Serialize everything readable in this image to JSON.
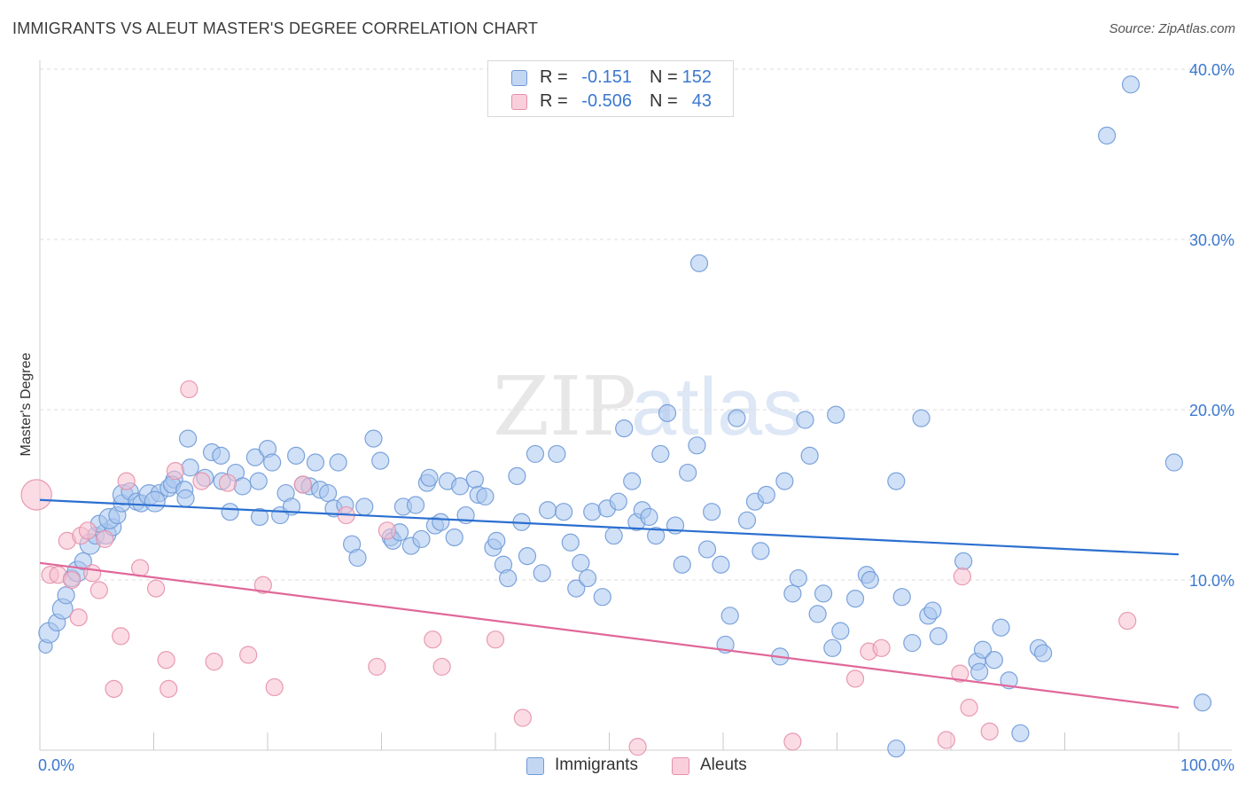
{
  "title": "IMMIGRANTS VS ALEUT MASTER'S DEGREE CORRELATION CHART",
  "source": "Source: ZipAtlas.com",
  "watermark": {
    "zip": "ZIP",
    "atlas": "atlas"
  },
  "legend": {
    "rows": [
      {
        "r_label": "R =",
        "r_value": "-0.151",
        "n_label": "N =",
        "n_value": "152"
      },
      {
        "r_label": "R =",
        "r_value": "-0.506",
        "n_label": "N =",
        "n_value": "43"
      }
    ],
    "bottom": [
      "Immigrants",
      "Aleuts"
    ]
  },
  "colors": {
    "immigrants_fill": "#a9c6ee",
    "immigrants_stroke": "#6f9ad8",
    "immigrants_line": "#2b6fd0",
    "aleuts_fill": "#f7c0cf",
    "aleuts_stroke": "#e690aa",
    "aleuts_line": "#e0689a",
    "grid": "#dcdcdc",
    "tick_text": "#3b78d0"
  },
  "chart_data": {
    "type": "scatter",
    "title": "IMMIGRANTS VS ALEUT MASTER'S DEGREE CORRELATION CHART",
    "xlabel": "",
    "ylabel": "Master's Degree",
    "xlim": [
      0,
      100
    ],
    "ylim": [
      0,
      40
    ],
    "x_tick_labels": [
      "0.0%",
      "100.0%"
    ],
    "y_ticks": [
      10,
      20,
      30,
      40
    ],
    "y_tick_labels": [
      "10.0%",
      "20.0%",
      "30.0%",
      "40.0%"
    ],
    "series": [
      {
        "name": "Immigrants",
        "r": -0.151,
        "n": 152,
        "trend": [
          [
            0,
            14.7
          ],
          [
            100,
            11.5
          ]
        ],
        "points": [
          [
            0.5,
            6.1,
            4
          ],
          [
            0.8,
            6.9,
            6
          ],
          [
            1.5,
            7.5,
            5
          ],
          [
            2,
            8.3,
            6
          ],
          [
            2.3,
            9.1,
            5
          ],
          [
            2.8,
            10.1,
            5
          ],
          [
            3.3,
            10.5,
            6
          ],
          [
            3.8,
            11.1,
            5
          ],
          [
            4.4,
            12.1,
            6
          ],
          [
            4.9,
            12.6,
            5
          ],
          [
            5.8,
            12.7,
            6
          ],
          [
            6.4,
            13.1,
            5
          ],
          [
            5.2,
            13.3,
            5
          ],
          [
            6.1,
            13.6,
            6
          ],
          [
            6.8,
            13.8,
            5
          ],
          [
            7.2,
            14.5,
            5
          ],
          [
            7.3,
            15.0,
            6
          ],
          [
            7.9,
            15.2,
            5
          ],
          [
            8.5,
            14.6,
            5
          ],
          [
            8.9,
            14.5,
            5
          ],
          [
            9.6,
            15.0,
            6
          ],
          [
            10.5,
            15.1,
            5
          ],
          [
            10.1,
            14.6,
            6
          ],
          [
            11.3,
            15.4,
            5
          ],
          [
            11.8,
            15.9,
            5
          ],
          [
            11.6,
            15.6,
            5
          ],
          [
            12.7,
            15.3,
            5
          ],
          [
            12.8,
            14.8,
            5
          ],
          [
            13.2,
            16.6,
            5
          ],
          [
            13.0,
            18.3,
            5
          ],
          [
            14.5,
            16.0,
            5
          ],
          [
            15.1,
            17.5,
            5
          ],
          [
            16.0,
            15.8,
            5
          ],
          [
            15.9,
            17.3,
            5
          ],
          [
            17.2,
            16.3,
            5
          ],
          [
            16.7,
            14.0,
            5
          ],
          [
            17.8,
            15.5,
            5
          ],
          [
            18.9,
            17.2,
            5
          ],
          [
            19.2,
            15.8,
            5
          ],
          [
            19.3,
            13.7,
            5
          ],
          [
            20.0,
            17.7,
            5
          ],
          [
            20.4,
            16.9,
            5
          ],
          [
            21.1,
            13.8,
            5
          ],
          [
            21.6,
            15.1,
            5
          ],
          [
            22.1,
            14.3,
            5
          ],
          [
            22.5,
            17.3,
            5
          ],
          [
            23.1,
            15.6,
            5
          ],
          [
            23.7,
            15.5,
            5
          ],
          [
            24.2,
            16.9,
            5
          ],
          [
            24.6,
            15.3,
            5
          ],
          [
            25.3,
            15.1,
            5
          ],
          [
            25.8,
            14.2,
            5
          ],
          [
            26.2,
            16.9,
            5
          ],
          [
            26.8,
            14.4,
            5
          ],
          [
            27.4,
            12.1,
            5
          ],
          [
            27.9,
            11.3,
            5
          ],
          [
            28.5,
            14.3,
            5
          ],
          [
            29.3,
            18.3,
            5
          ],
          [
            29.9,
            17.0,
            5
          ],
          [
            30.8,
            12.5,
            5
          ],
          [
            31.0,
            12.3,
            5
          ],
          [
            31.6,
            12.8,
            5
          ],
          [
            31.9,
            14.3,
            5
          ],
          [
            32.6,
            12.0,
            5
          ],
          [
            33.0,
            14.4,
            5
          ],
          [
            33.5,
            12.4,
            5
          ],
          [
            34.0,
            15.7,
            5
          ],
          [
            34.7,
            13.2,
            5
          ],
          [
            34.2,
            16.0,
            5
          ],
          [
            35.2,
            13.4,
            5
          ],
          [
            35.8,
            15.8,
            5
          ],
          [
            36.4,
            12.5,
            5
          ],
          [
            36.9,
            15.5,
            5
          ],
          [
            37.4,
            13.8,
            5
          ],
          [
            38.2,
            15.9,
            5
          ],
          [
            38.5,
            15.0,
            5
          ],
          [
            39.1,
            14.9,
            5
          ],
          [
            39.8,
            11.9,
            5
          ],
          [
            40.1,
            12.3,
            5
          ],
          [
            40.7,
            10.9,
            5
          ],
          [
            41.1,
            10.1,
            5
          ],
          [
            41.9,
            16.1,
            5
          ],
          [
            42.3,
            13.4,
            5
          ],
          [
            42.8,
            11.4,
            5
          ],
          [
            43.5,
            17.4,
            5
          ],
          [
            44.1,
            10.4,
            5
          ],
          [
            44.6,
            14.1,
            5
          ],
          [
            45.4,
            17.4,
            5
          ],
          [
            46.0,
            14.0,
            5
          ],
          [
            46.6,
            12.2,
            5
          ],
          [
            47.1,
            9.5,
            5
          ],
          [
            47.5,
            11.0,
            5
          ],
          [
            48.1,
            10.1,
            5
          ],
          [
            48.5,
            14.0,
            5
          ],
          [
            49.4,
            9.0,
            5
          ],
          [
            49.8,
            14.2,
            5
          ],
          [
            50.4,
            12.6,
            5
          ],
          [
            50.8,
            14.6,
            5
          ],
          [
            51.3,
            18.9,
            5
          ],
          [
            52.0,
            15.8,
            5
          ],
          [
            52.4,
            13.4,
            5
          ],
          [
            52.9,
            14.1,
            5
          ],
          [
            53.5,
            13.7,
            5
          ],
          [
            54.1,
            12.6,
            5
          ],
          [
            54.5,
            17.4,
            5
          ],
          [
            55.1,
            19.8,
            5
          ],
          [
            55.8,
            13.2,
            5
          ],
          [
            56.4,
            10.9,
            5
          ],
          [
            56.9,
            16.3,
            5
          ],
          [
            57.7,
            17.9,
            5
          ],
          [
            57.9,
            28.6,
            5
          ],
          [
            58.6,
            11.8,
            5
          ],
          [
            59.0,
            14.0,
            5
          ],
          [
            59.8,
            10.9,
            5
          ],
          [
            60.2,
            6.2,
            5
          ],
          [
            60.6,
            7.9,
            5
          ],
          [
            61.2,
            19.5,
            5
          ],
          [
            62.1,
            13.5,
            5
          ],
          [
            62.8,
            14.6,
            5
          ],
          [
            63.3,
            11.7,
            5
          ],
          [
            63.8,
            15.0,
            5
          ],
          [
            65.0,
            5.5,
            5
          ],
          [
            65.4,
            15.8,
            5
          ],
          [
            66.1,
            9.2,
            5
          ],
          [
            66.6,
            10.1,
            5
          ],
          [
            67.2,
            19.4,
            5
          ],
          [
            67.6,
            17.3,
            5
          ],
          [
            68.3,
            8.0,
            5
          ],
          [
            68.8,
            9.2,
            5
          ],
          [
            69.6,
            6.0,
            5
          ],
          [
            69.9,
            19.7,
            5
          ],
          [
            70.3,
            7.0,
            5
          ],
          [
            71.6,
            8.9,
            5
          ],
          [
            72.6,
            10.3,
            5
          ],
          [
            72.9,
            10.0,
            5
          ],
          [
            75.2,
            15.8,
            5
          ],
          [
            75.7,
            9.0,
            5
          ],
          [
            76.6,
            6.3,
            5
          ],
          [
            77.4,
            19.5,
            5
          ],
          [
            78.0,
            7.9,
            5
          ],
          [
            78.4,
            8.2,
            5
          ],
          [
            78.9,
            6.7,
            5
          ],
          [
            81.1,
            11.1,
            5
          ],
          [
            82.3,
            5.2,
            5
          ],
          [
            82.5,
            4.6,
            5
          ],
          [
            82.8,
            5.9,
            5
          ],
          [
            83.8,
            5.3,
            5
          ],
          [
            84.4,
            7.2,
            5
          ],
          [
            85.1,
            4.1,
            5
          ],
          [
            86.1,
            1.0,
            5
          ],
          [
            87.7,
            6.0,
            5
          ],
          [
            93.7,
            36.1,
            5
          ],
          [
            95.8,
            39.1,
            5
          ],
          [
            99.6,
            16.9,
            5
          ],
          [
            102.1,
            2.8,
            5
          ],
          [
            88.1,
            5.7,
            5
          ],
          [
            75.2,
            0.1,
            5
          ]
        ]
      },
      {
        "name": "Aleuts",
        "r": -0.506,
        "n": 43,
        "trend": [
          [
            0,
            11.0
          ],
          [
            100,
            2.5
          ]
        ],
        "points": [
          [
            -0.3,
            15.0,
            9
          ],
          [
            0.9,
            10.3,
            5
          ],
          [
            1.6,
            10.3,
            5
          ],
          [
            2.4,
            12.3,
            5
          ],
          [
            2.8,
            10.0,
            5
          ],
          [
            3.6,
            12.6,
            5
          ],
          [
            3.4,
            7.8,
            5
          ],
          [
            4.2,
            12.9,
            5
          ],
          [
            4.6,
            10.4,
            5
          ],
          [
            5.2,
            9.4,
            5
          ],
          [
            5.7,
            12.4,
            5
          ],
          [
            6.5,
            3.6,
            5
          ],
          [
            7.1,
            6.7,
            5
          ],
          [
            7.6,
            15.8,
            5
          ],
          [
            8.8,
            10.7,
            5
          ],
          [
            10.2,
            9.5,
            5
          ],
          [
            11.3,
            3.6,
            5
          ],
          [
            11.1,
            5.3,
            5
          ],
          [
            11.9,
            16.4,
            5
          ],
          [
            13.1,
            21.2,
            5
          ],
          [
            14.2,
            15.8,
            5
          ],
          [
            15.3,
            5.2,
            5
          ],
          [
            16.5,
            15.7,
            5
          ],
          [
            18.3,
            5.6,
            5
          ],
          [
            19.6,
            9.7,
            5
          ],
          [
            20.6,
            3.7,
            5
          ],
          [
            23.1,
            15.6,
            5
          ],
          [
            26.9,
            13.8,
            5
          ],
          [
            29.6,
            4.9,
            5
          ],
          [
            30.5,
            12.9,
            5
          ],
          [
            34.5,
            6.5,
            5
          ],
          [
            35.3,
            4.9,
            5
          ],
          [
            40.0,
            6.5,
            5
          ],
          [
            42.4,
            1.9,
            5
          ],
          [
            52.5,
            0.2,
            5
          ],
          [
            66.1,
            0.5,
            5
          ],
          [
            71.6,
            4.2,
            5
          ],
          [
            72.8,
            5.8,
            5
          ],
          [
            73.9,
            6.0,
            5
          ],
          [
            79.6,
            0.6,
            5
          ],
          [
            81.0,
            10.2,
            5
          ],
          [
            80.8,
            4.5,
            5
          ],
          [
            81.6,
            2.5,
            5
          ],
          [
            83.4,
            1.1,
            5
          ],
          [
            95.5,
            7.6,
            5
          ]
        ]
      }
    ]
  }
}
